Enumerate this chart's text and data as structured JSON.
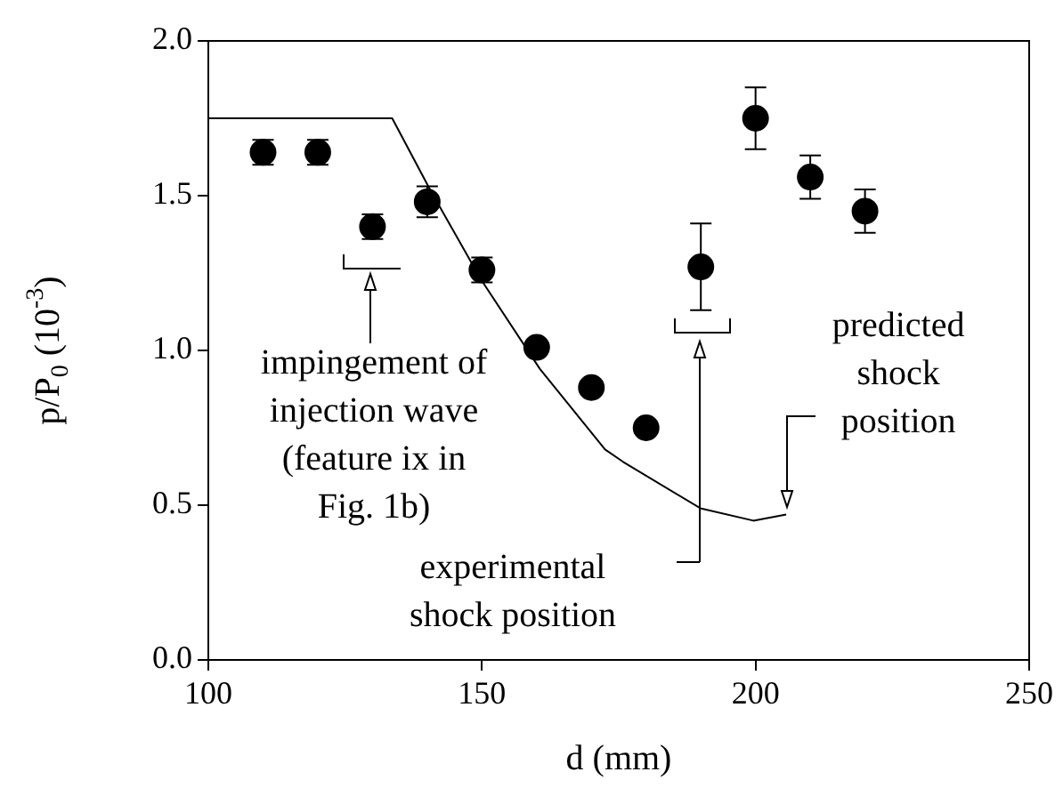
{
  "chart_data": {
    "type": "scatter",
    "xlabel": "d (mm)",
    "ylabel": "p/P$_{0}$ (10$^{-3}$)",
    "xlim": [
      100,
      250
    ],
    "xticks": [
      100,
      150,
      200,
      250
    ],
    "ylim": [
      0,
      2
    ],
    "yticks": [
      {
        "value": 0,
        "label": "0.0"
      },
      {
        "value": 0.5,
        "label": "0.5"
      },
      {
        "value": 1,
        "label": "1.0"
      },
      {
        "value": 1.5,
        "label": "1.5"
      },
      {
        "value": 2,
        "label": "2.0"
      }
    ],
    "marker": "circle",
    "series": [
      {
        "type": "scatter",
        "color": "#000000",
        "x": [
          110,
          120,
          130,
          140,
          150,
          160,
          170,
          180,
          190,
          200,
          210,
          220
        ],
        "values": [
          1.64,
          1.64,
          1.4,
          1.48,
          1.26,
          1.01,
          0.88,
          0.75,
          1.27,
          1.75,
          1.56,
          1.45
        ],
        "errors": [
          0.04,
          0.04,
          0.04,
          0.05,
          0.04,
          null,
          null,
          null,
          0.14,
          0.1,
          0.07,
          0.07
        ]
      },
      {
        "type": "line",
        "color": "#000000",
        "marker": "none",
        "x": [
          100,
          133.6,
          140.5,
          149.8,
          160.6,
          172.5,
          175.8,
          189.9,
          199.6,
          205.6
        ],
        "values": [
          1.75,
          1.75,
          1.52,
          1.23,
          0.94,
          0.68,
          0.64,
          0.49,
          0.45,
          0.47
        ]
      }
    ],
    "annotations": [
      "impingement of\ninjection wave\n(feature ix in\nFig. 1b)",
      "experimental\nshock position",
      {
        "text": "predicted\nshock\nposition",
        "x": 205.6,
        "y": 0.47
      }
    ]
  }
}
